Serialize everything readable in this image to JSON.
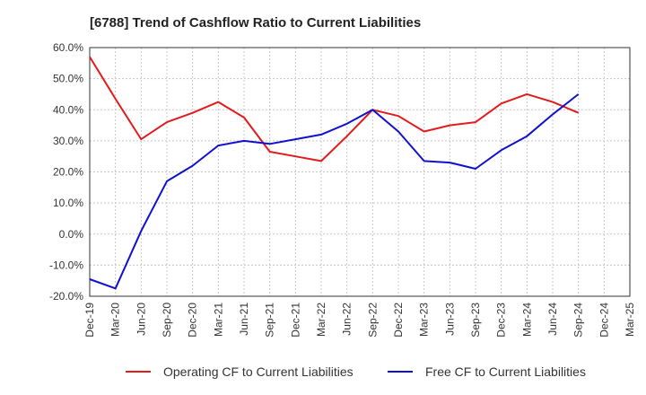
{
  "chart_data": {
    "type": "line",
    "title": "[6788]  Trend of Cashflow Ratio to Current Liabilities",
    "xlabel": "",
    "ylabel": "",
    "ylim": [
      -20,
      60
    ],
    "yticks": [
      60,
      50,
      40,
      30,
      20,
      10,
      0,
      -10,
      -20
    ],
    "ytick_labels": [
      "60.0%",
      "50.0%",
      "40.0%",
      "30.0%",
      "20.0%",
      "10.0%",
      "0.0%",
      "-10.0%",
      "-20.0%"
    ],
    "categories": [
      "Dec-19",
      "Mar-20",
      "Jun-20",
      "Sep-20",
      "Dec-20",
      "Mar-21",
      "Jun-21",
      "Sep-21",
      "Dec-21",
      "Mar-22",
      "Jun-22",
      "Sep-22",
      "Dec-22",
      "Mar-23",
      "Jun-23",
      "Sep-23",
      "Dec-23",
      "Mar-24",
      "Jun-24",
      "Sep-24",
      "Dec-24",
      "Mar-25"
    ],
    "grid": true,
    "legend_position": "bottom",
    "series": [
      {
        "name": "Operating CF to Current Liabilities",
        "color": "#e41a1c",
        "values": [
          57.0,
          43.5,
          30.5,
          36.0,
          39.0,
          42.5,
          37.5,
          26.5,
          25.0,
          23.5,
          31.5,
          40.0,
          38.0,
          33.0,
          35.0,
          36.0,
          42.0,
          45.0,
          42.5,
          39.0,
          null,
          null
        ]
      },
      {
        "name": "Free CF to Current Liabilities",
        "color": "#1010d0",
        "values": [
          -14.5,
          -17.5,
          1.0,
          17.0,
          22.0,
          28.5,
          30.0,
          29.0,
          30.5,
          32.0,
          35.5,
          40.0,
          33.0,
          23.5,
          23.0,
          21.0,
          27.0,
          31.5,
          38.5,
          45.0,
          null,
          null
        ]
      }
    ]
  }
}
